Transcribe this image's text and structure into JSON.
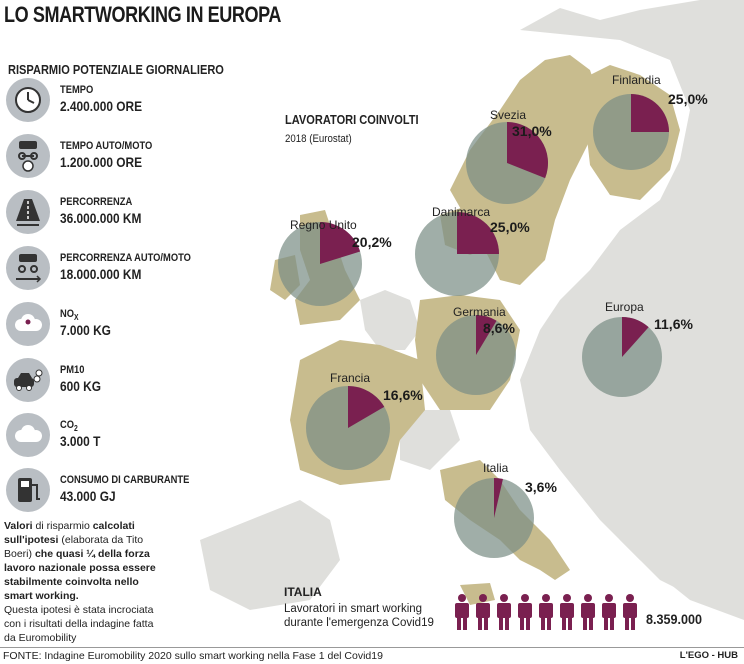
{
  "title": "LO SMARTWORKING IN EUROPA",
  "panel_title": "RISPARMIO POTENZIALE GIORNALIERO",
  "items": [
    {
      "label": "TEMPO",
      "value": "2.400.000 ORE",
      "icon": "clock-icon"
    },
    {
      "label": "TEMPO AUTO/MOTO",
      "value": "1.200.000 ORE",
      "icon": "car-moto-clock-icon"
    },
    {
      "label": "PERCORRENZA",
      "value": "36.000.000 KM",
      "icon": "road-icon"
    },
    {
      "label": "PERCORRENZA AUTO/MOTO",
      "value": "18.000.000 KM",
      "icon": "car-moto-road-icon"
    },
    {
      "label": "NOX",
      "label_main": "NO",
      "label_sub": "X",
      "value": "7.000 KG",
      "icon": "cloud-nox-icon"
    },
    {
      "label": "PM10",
      "value": "600 KG",
      "icon": "car-smoke-icon"
    },
    {
      "label": "CO2",
      "label_main": "CO",
      "label_sub": "2",
      "value": "3.000 T",
      "icon": "cloud-co2-icon"
    },
    {
      "label": "CONSUMO DI CARBURANTE",
      "value": "43.000 GJ",
      "icon": "fuel-pump-icon"
    }
  ],
  "note": {
    "b1": "Valori",
    "t1": " di risparmio ",
    "b2": "calcolati sull'ipotesi",
    "t2": " (elaborata da Tito Boeri) ",
    "b3": "che quasi ¼ della forza lavoro nazionale possa essere stabilmente coinvolta nello smart working.",
    "t3": "Questa ipotesi è stata incrociata con i risultati della indagine fatta da Euromobility"
  },
  "lavoratori": {
    "title": "LAVORATORI COINVOLTI",
    "subtitle": "2018 (Eurostat)"
  },
  "chart_data": {
    "type": "pie",
    "title": "LAVORATORI COINVOLTI",
    "subtitle": "2018 (Eurostat)",
    "unit": "%",
    "series": [
      {
        "name": "Svezia",
        "value": 31.0,
        "label": "31,0%"
      },
      {
        "name": "Finlandia",
        "value": 25.0,
        "label": "25,0%"
      },
      {
        "name": "Regno Unito",
        "value": 20.2,
        "label": "20,2%"
      },
      {
        "name": "Danimarca",
        "value": 25.0,
        "label": "25,0%"
      },
      {
        "name": "Germania",
        "value": 8.6,
        "label": "8,6%"
      },
      {
        "name": "Europa",
        "value": 11.6,
        "label": "11,6%"
      },
      {
        "name": "Francia",
        "value": 16.6,
        "label": "16,6%"
      },
      {
        "name": "Italia",
        "value": 3.6,
        "label": "3,6%"
      }
    ]
  },
  "italia": {
    "title": "ITALIA",
    "line1": "Lavoratori in smart working",
    "line2": "durante l'emergenza Covid19",
    "value": "8.359.000"
  },
  "source": "FONTE: Indagine Euromobility 2020 sullo smart working nella Fase 1 del Covid19",
  "brand": "L'EGO - HUB",
  "colors": {
    "map_highlight": "#c8bc8e",
    "map_other": "#dfdfdc",
    "sea": "#ffffff",
    "pie_slice": "#7a2050",
    "pie_rest": "#7b8f86",
    "icon_bg": "#b9bec3",
    "people": "#7a2050"
  }
}
